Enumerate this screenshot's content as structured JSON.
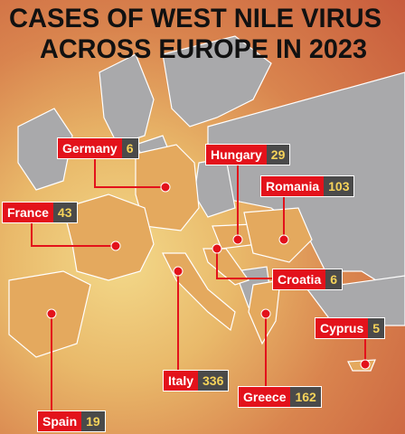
{
  "title": [
    "CASES OF WEST NILE VIRUS",
    "ACROSS EUROPE IN 2023"
  ],
  "countries": [
    {
      "name": "Germany",
      "cases": 6
    },
    {
      "name": "Hungary",
      "cases": 29
    },
    {
      "name": "Romania",
      "cases": 103
    },
    {
      "name": "France",
      "cases": 43
    },
    {
      "name": "Croatia",
      "cases": 6
    },
    {
      "name": "Cyprus",
      "cases": 5
    },
    {
      "name": "Italy",
      "cases": 336
    },
    {
      "name": "Greece",
      "cases": 162
    },
    {
      "name": "Spain",
      "cases": 19
    }
  ]
}
